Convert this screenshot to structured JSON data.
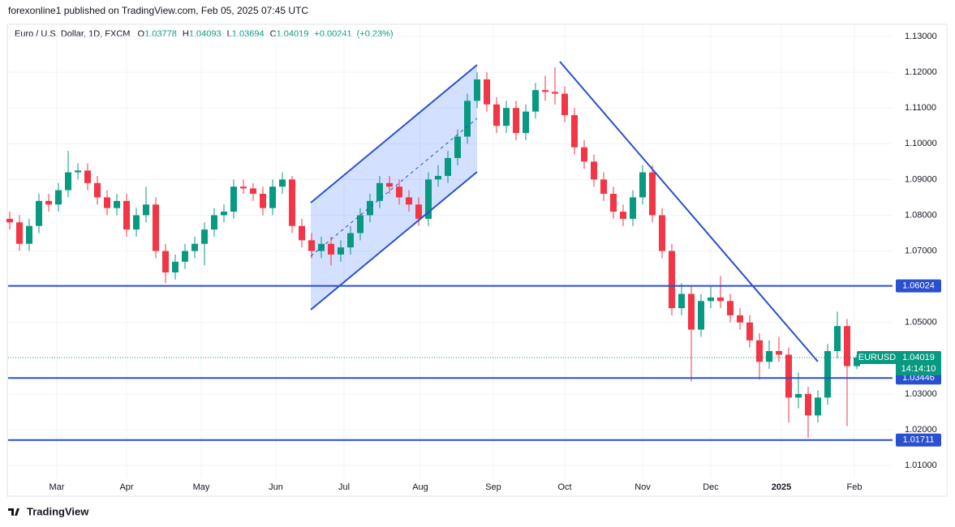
{
  "header": {
    "publisher": "forexonline1 published on TradingView.com, Feb 05, 2025 07:45 UTC"
  },
  "footer": {
    "brand": "TradingView"
  },
  "chart_data": {
    "type": "candlestick",
    "title": "Euro / U.S. Dollar, 1D, FXCM",
    "legend": {
      "o": "O",
      "open": 1.03778,
      "h": "H",
      "high": 1.04093,
      "l": "L",
      "low": 1.03694,
      "c": "C",
      "close": 1.04019,
      "change": {
        "value": 0.00241,
        "label": "+0.00241"
      },
      "change_pct": {
        "value": 0.23,
        "label": "(+0.23%)"
      }
    },
    "up_color": "#089981",
    "down_color": "#f23645",
    "line_color": "#2a4fcf",
    "xlim": [
      -0.5,
      272
    ],
    "xticks": [
      {
        "value": 14.5,
        "label": "Mar"
      },
      {
        "value": 36,
        "label": "Apr"
      },
      {
        "value": 59,
        "label": "May"
      },
      {
        "value": 82,
        "label": "Jun"
      },
      {
        "value": 103,
        "label": "Jul"
      },
      {
        "value": 126.5,
        "label": "Aug"
      },
      {
        "value": 149,
        "label": "Sep"
      },
      {
        "value": 171,
        "label": "Oct"
      },
      {
        "value": 195,
        "label": "Nov"
      },
      {
        "value": 216,
        "label": "Dec"
      },
      {
        "value": 237.75,
        "label": "2025"
      },
      {
        "value": 260.25,
        "label": "Feb"
      }
    ],
    "ylim": [
      1.0064,
      1.1334
    ],
    "yticks": [
      {
        "value": 1.13,
        "label": "1.13000"
      },
      {
        "value": 1.12,
        "label": "1.12000"
      },
      {
        "value": 1.11,
        "label": "1.11000"
      },
      {
        "value": 1.1,
        "label": "1.10000"
      },
      {
        "value": 1.09,
        "label": "1.09000"
      },
      {
        "value": 1.08,
        "label": "1.08000"
      },
      {
        "value": 1.07,
        "label": "1.07000"
      },
      {
        "value": 1.05,
        "label": "1.05000"
      },
      {
        "value": 1.03,
        "label": "1.03000"
      },
      {
        "value": 1.02,
        "label": "1.02000"
      },
      {
        "value": 1.01,
        "label": "1.01000"
      }
    ],
    "grid": true,
    "levels": [
      1.06024,
      1.03446,
      1.01711
    ],
    "last_price": {
      "symbol": "EURUSD",
      "price": 1.04019,
      "countdown": "14:14:10"
    },
    "x": [
      0,
      3,
      6,
      9,
      12,
      15,
      18,
      21,
      24,
      27,
      30,
      33,
      36,
      39,
      42,
      45,
      48,
      51,
      54,
      57,
      60,
      63,
      66,
      69,
      72,
      75,
      78,
      81,
      84,
      87,
      90,
      93,
      96,
      99,
      102,
      105,
      108,
      111,
      114,
      117,
      120,
      123,
      126,
      129,
      132,
      135,
      138,
      141,
      144,
      147,
      150,
      153,
      156,
      159,
      162,
      165,
      168,
      171,
      174,
      177,
      180,
      183,
      186,
      189,
      192,
      195,
      198,
      201,
      204,
      207,
      210,
      213,
      216,
      219,
      222,
      225,
      228,
      231,
      234,
      237,
      240,
      243,
      246,
      249,
      252,
      255,
      258,
      261
    ],
    "series": [
      {
        "name": "EURUSD",
        "values": [
          [
            1.079,
            1.081,
            1.076,
            1.078
          ],
          [
            1.078,
            1.08,
            1.07,
            1.072
          ],
          [
            1.072,
            1.079,
            1.07,
            1.077
          ],
          [
            1.077,
            1.086,
            1.075,
            1.084
          ],
          [
            1.084,
            1.086,
            1.081,
            1.083
          ],
          [
            1.083,
            1.089,
            1.081,
            1.087
          ],
          [
            1.087,
            1.098,
            1.085,
            1.092
          ],
          [
            1.092,
            1.0945,
            1.09,
            1.0925
          ],
          [
            1.0925,
            1.0945,
            1.087,
            1.089
          ],
          [
            1.089,
            1.091,
            1.083,
            1.085
          ],
          [
            1.085,
            1.087,
            1.08,
            1.082
          ],
          [
            1.082,
            1.086,
            1.08,
            1.084
          ],
          [
            1.084,
            1.086,
            1.074,
            1.076
          ],
          [
            1.076,
            1.082,
            1.074,
            1.08
          ],
          [
            1.08,
            1.088,
            1.078,
            1.083
          ],
          [
            1.083,
            1.085,
            1.068,
            1.07
          ],
          [
            1.07,
            1.072,
            1.061,
            1.064
          ],
          [
            1.064,
            1.069,
            1.062,
            1.067
          ],
          [
            1.067,
            1.072,
            1.065,
            1.07
          ],
          [
            1.07,
            1.074,
            1.068,
            1.072
          ],
          [
            1.072,
            1.078,
            1.066,
            1.076
          ],
          [
            1.076,
            1.082,
            1.074,
            1.08
          ],
          [
            1.08,
            1.083,
            1.078,
            1.081
          ],
          [
            1.081,
            1.09,
            1.079,
            1.088
          ],
          [
            1.088,
            1.09,
            1.086,
            1.0875
          ],
          [
            1.0875,
            1.089,
            1.084,
            1.086
          ],
          [
            1.086,
            1.088,
            1.08,
            1.082
          ],
          [
            1.082,
            1.09,
            1.08,
            1.088
          ],
          [
            1.088,
            1.092,
            1.086,
            1.09
          ],
          [
            1.09,
            1.091,
            1.075,
            1.077
          ],
          [
            1.077,
            1.079,
            1.071,
            1.073
          ],
          [
            1.073,
            1.075,
            1.068,
            1.07
          ],
          [
            1.07,
            1.074,
            1.068,
            1.072
          ],
          [
            1.072,
            1.074,
            1.066,
            1.069
          ],
          [
            1.069,
            1.073,
            1.067,
            1.071
          ],
          [
            1.071,
            1.077,
            1.069,
            1.075
          ],
          [
            1.075,
            1.082,
            1.073,
            1.08
          ],
          [
            1.08,
            1.086,
            1.078,
            1.084
          ],
          [
            1.084,
            1.091,
            1.082,
            1.089
          ],
          [
            1.089,
            1.091,
            1.086,
            1.088
          ],
          [
            1.088,
            1.09,
            1.083,
            1.085
          ],
          [
            1.085,
            1.087,
            1.081,
            1.083
          ],
          [
            1.083,
            1.085,
            1.077,
            1.079
          ],
          [
            1.079,
            1.092,
            1.077,
            1.09
          ],
          [
            1.09,
            1.094,
            1.088,
            1.091
          ],
          [
            1.091,
            1.098,
            1.089,
            1.096
          ],
          [
            1.096,
            1.104,
            1.094,
            1.102
          ],
          [
            1.102,
            1.114,
            1.1,
            1.112
          ],
          [
            1.112,
            1.12,
            1.11,
            1.118
          ],
          [
            1.118,
            1.12,
            1.109,
            1.111
          ],
          [
            1.111,
            1.113,
            1.103,
            1.105
          ],
          [
            1.105,
            1.112,
            1.103,
            1.11
          ],
          [
            1.11,
            1.112,
            1.101,
            1.103
          ],
          [
            1.103,
            1.111,
            1.101,
            1.109
          ],
          [
            1.109,
            1.117,
            1.107,
            1.115
          ],
          [
            1.115,
            1.119,
            1.112,
            1.1145
          ],
          [
            1.1145,
            1.1214,
            1.111,
            1.114
          ],
          [
            1.114,
            1.116,
            1.106,
            1.108
          ],
          [
            1.108,
            1.11,
            1.097,
            1.099
          ],
          [
            1.099,
            1.101,
            1.093,
            1.095
          ],
          [
            1.095,
            1.097,
            1.088,
            1.09
          ],
          [
            1.09,
            1.092,
            1.084,
            1.086
          ],
          [
            1.086,
            1.088,
            1.079,
            1.081
          ],
          [
            1.081,
            1.083,
            1.077,
            1.079
          ],
          [
            1.079,
            1.087,
            1.077,
            1.085
          ],
          [
            1.085,
            1.094,
            1.083,
            1.092
          ],
          [
            1.092,
            1.094,
            1.078,
            1.08
          ],
          [
            1.08,
            1.082,
            1.068,
            1.07
          ],
          [
            1.07,
            1.072,
            1.052,
            1.054
          ],
          [
            1.054,
            1.061,
            1.052,
            1.058
          ],
          [
            1.058,
            1.06,
            1.0335,
            1.048
          ],
          [
            1.048,
            1.058,
            1.046,
            1.056
          ],
          [
            1.056,
            1.06,
            1.054,
            1.057
          ],
          [
            1.057,
            1.063,
            1.054,
            1.056
          ],
          [
            1.056,
            1.058,
            1.05,
            1.052
          ],
          [
            1.052,
            1.054,
            1.048,
            1.05
          ],
          [
            1.05,
            1.052,
            1.043,
            1.045
          ],
          [
            1.045,
            1.047,
            1.034,
            1.039
          ],
          [
            1.039,
            1.045,
            1.037,
            1.042
          ],
          [
            1.042,
            1.046,
            1.039,
            1.041
          ],
          [
            1.041,
            1.043,
            1.022,
            1.029
          ],
          [
            1.029,
            1.036,
            1.026,
            1.03
          ],
          [
            1.03,
            1.032,
            1.0177,
            1.024
          ],
          [
            1.024,
            1.031,
            1.022,
            1.029
          ],
          [
            1.029,
            1.044,
            1.027,
            1.042
          ],
          [
            1.042,
            1.053,
            1.04,
            1.049
          ],
          [
            1.049,
            1.051,
            1.021,
            1.0378
          ],
          [
            1.03778,
            1.04093,
            1.03694,
            1.04019
          ]
        ]
      }
    ]
  }
}
